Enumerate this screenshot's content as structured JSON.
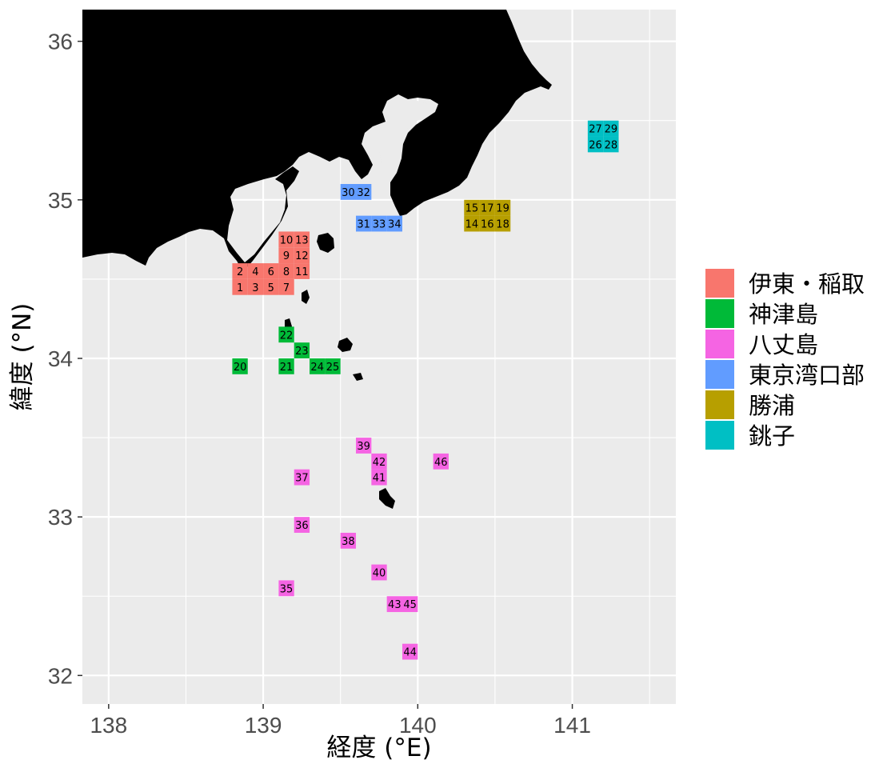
{
  "chart_data": {
    "type": "heatmap",
    "xlabel": "経度 (°E)",
    "ylabel": "緯度 (°N)",
    "xlim": [
      137.83,
      141.67
    ],
    "ylim": [
      31.82,
      36.2
    ],
    "x_ticks": [
      {
        "value": 138,
        "label": "138"
      },
      {
        "value": 139,
        "label": "139"
      },
      {
        "value": 140,
        "label": "140"
      },
      {
        "value": 141,
        "label": "141"
      }
    ],
    "y_ticks": [
      {
        "value": 32,
        "label": "32"
      },
      {
        "value": 33,
        "label": "33"
      },
      {
        "value": 34,
        "label": "34"
      },
      {
        "value": 35,
        "label": "35"
      },
      {
        "value": 36,
        "label": "36"
      }
    ],
    "x_minor": [
      138.5,
      139.5,
      140.5,
      141.5
    ],
    "y_minor": [
      32.5,
      33.5,
      34.5,
      35.5
    ],
    "grid": true,
    "panel_color": "#ebebeb",
    "land_color": "#000000",
    "cell_size_deg": 0.1,
    "legend_position": "right",
    "series": [
      {
        "name": "伊東・稲取",
        "color": "#F8766D",
        "cells": [
          {
            "id": "1",
            "x": 138.85,
            "y": 34.45
          },
          {
            "id": "2",
            "x": 138.85,
            "y": 34.55
          },
          {
            "id": "3",
            "x": 138.95,
            "y": 34.45
          },
          {
            "id": "4",
            "x": 138.95,
            "y": 34.55
          },
          {
            "id": "5",
            "x": 139.05,
            "y": 34.45
          },
          {
            "id": "6",
            "x": 139.05,
            "y": 34.55
          },
          {
            "id": "7",
            "x": 139.15,
            "y": 34.45
          },
          {
            "id": "8",
            "x": 139.15,
            "y": 34.55
          },
          {
            "id": "9",
            "x": 139.15,
            "y": 34.65
          },
          {
            "id": "10",
            "x": 139.15,
            "y": 34.75
          },
          {
            "id": "11",
            "x": 139.25,
            "y": 34.55
          },
          {
            "id": "12",
            "x": 139.25,
            "y": 34.65
          },
          {
            "id": "13",
            "x": 139.25,
            "y": 34.75
          }
        ]
      },
      {
        "name": "神津島",
        "color": "#00BA38",
        "cells": [
          {
            "id": "20",
            "x": 138.85,
            "y": 33.95
          },
          {
            "id": "21",
            "x": 139.15,
            "y": 33.95
          },
          {
            "id": "22",
            "x": 139.15,
            "y": 34.15
          },
          {
            "id": "23",
            "x": 139.25,
            "y": 34.05
          },
          {
            "id": "24",
            "x": 139.35,
            "y": 33.95
          },
          {
            "id": "25",
            "x": 139.45,
            "y": 33.95
          }
        ]
      },
      {
        "name": "八丈島",
        "color": "#F564E3",
        "cells": [
          {
            "id": "35",
            "x": 139.15,
            "y": 32.55
          },
          {
            "id": "36",
            "x": 139.25,
            "y": 32.95
          },
          {
            "id": "37",
            "x": 139.25,
            "y": 33.25
          },
          {
            "id": "38",
            "x": 139.55,
            "y": 32.85
          },
          {
            "id": "39",
            "x": 139.65,
            "y": 33.45
          },
          {
            "id": "40",
            "x": 139.75,
            "y": 32.65
          },
          {
            "id": "41",
            "x": 139.75,
            "y": 33.25
          },
          {
            "id": "42",
            "x": 139.75,
            "y": 33.35
          },
          {
            "id": "43",
            "x": 139.85,
            "y": 32.45
          },
          {
            "id": "44",
            "x": 139.95,
            "y": 32.15
          },
          {
            "id": "45",
            "x": 139.95,
            "y": 32.45
          },
          {
            "id": "46",
            "x": 140.15,
            "y": 33.35
          }
        ]
      },
      {
        "name": "東京湾口部",
        "color": "#619CFF",
        "cells": [
          {
            "id": "30",
            "x": 139.55,
            "y": 35.05
          },
          {
            "id": "31",
            "x": 139.65,
            "y": 34.85
          },
          {
            "id": "32",
            "x": 139.65,
            "y": 35.05
          },
          {
            "id": "33",
            "x": 139.75,
            "y": 34.85
          },
          {
            "id": "34",
            "x": 139.85,
            "y": 34.85
          }
        ]
      },
      {
        "name": "勝浦",
        "color": "#B79F00",
        "cells": [
          {
            "id": "14",
            "x": 140.35,
            "y": 34.85
          },
          {
            "id": "15",
            "x": 140.35,
            "y": 34.95
          },
          {
            "id": "16",
            "x": 140.45,
            "y": 34.85
          },
          {
            "id": "17",
            "x": 140.45,
            "y": 34.95
          },
          {
            "id": "18",
            "x": 140.55,
            "y": 34.85
          },
          {
            "id": "19",
            "x": 140.55,
            "y": 34.95
          }
        ]
      },
      {
        "name": "銚子",
        "color": "#00BFC4",
        "cells": [
          {
            "id": "26",
            "x": 141.15,
            "y": 35.35
          },
          {
            "id": "27",
            "x": 141.15,
            "y": 35.45
          },
          {
            "id": "28",
            "x": 141.25,
            "y": 35.35
          },
          {
            "id": "29",
            "x": 141.25,
            "y": 35.45
          }
        ]
      }
    ]
  }
}
